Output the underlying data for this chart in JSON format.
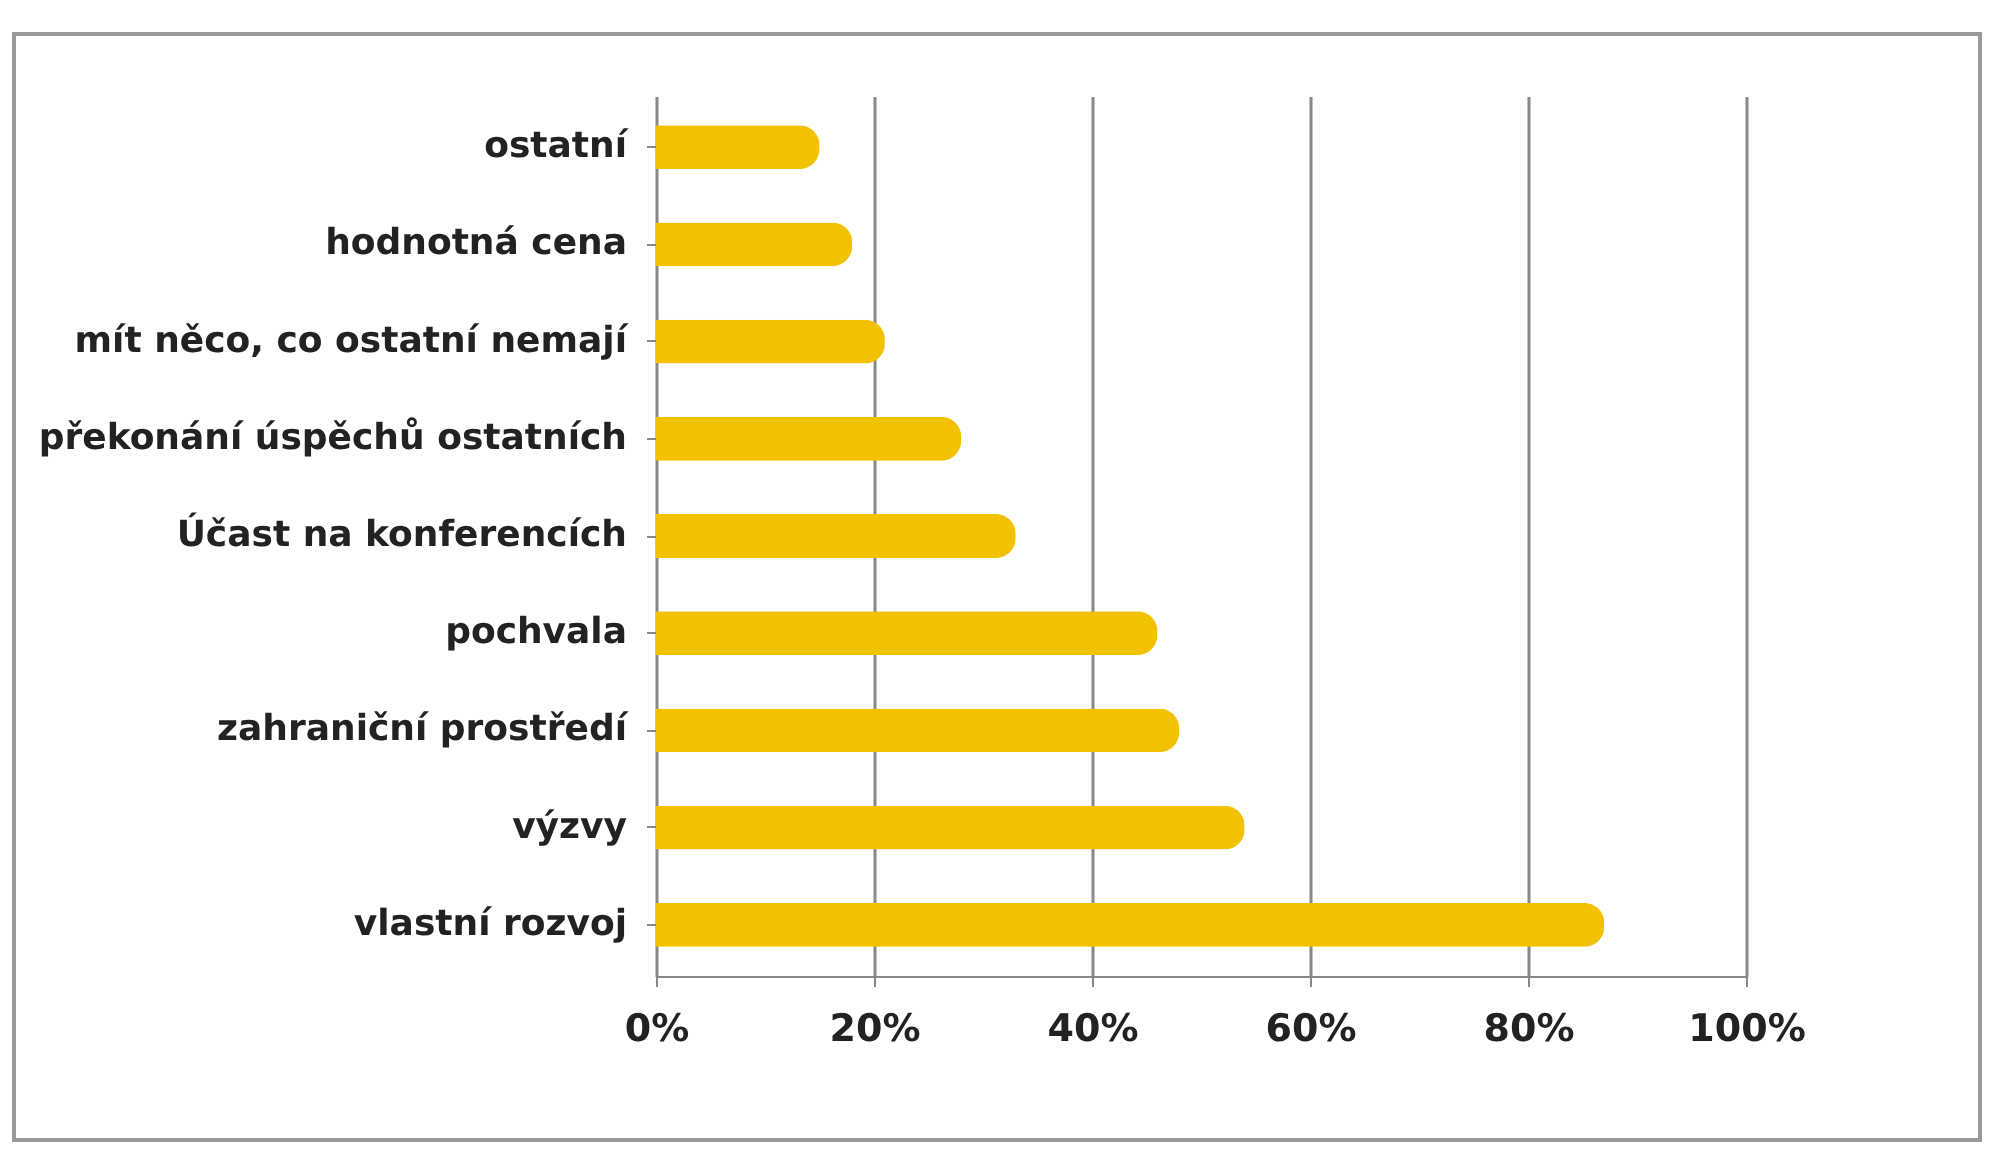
{
  "chart_data": {
    "type": "bar",
    "orientation": "horizontal",
    "categories": [
      "ostatní",
      "hodnotná cena",
      "mít něco, co ostatní nemají",
      "překonání úspěchů ostatních",
      "Účast na konferencích",
      "pochvala",
      "zahraniční prostředí",
      "výzvy",
      "vlastní rozvoj"
    ],
    "series": [
      {
        "color": "#f2c200",
        "values": [
          15,
          18,
          21,
          28,
          33,
          46,
          48,
          54,
          87
        ]
      }
    ],
    "xlim": [
      0,
      100
    ],
    "xticks": [
      {
        "value": 0,
        "label": "0%"
      },
      {
        "value": 20,
        "label": "20%"
      },
      {
        "value": 40,
        "label": "40%"
      },
      {
        "value": 60,
        "label": "60%"
      },
      {
        "value": 80,
        "label": "80%"
      },
      {
        "value": 100,
        "label": "100%"
      }
    ],
    "grid": "x"
  }
}
